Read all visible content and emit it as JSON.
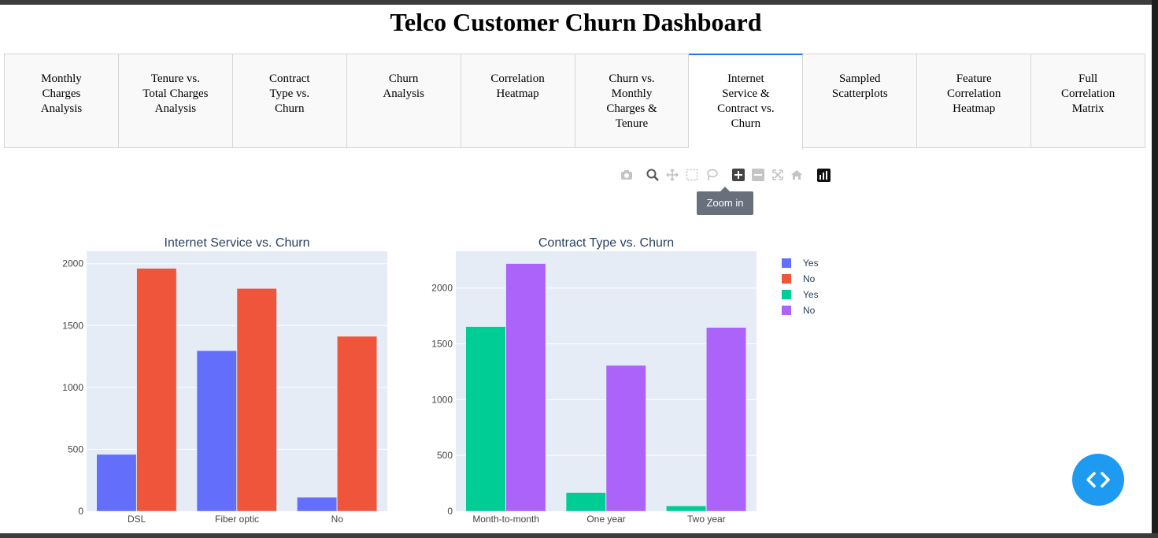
{
  "header": {
    "title": "Telco Customer Churn Dashboard"
  },
  "tabs": [
    {
      "label": "Monthly\nCharges\nAnalysis",
      "active": false
    },
    {
      "label": "Tenure vs.\nTotal Charges\nAnalysis",
      "active": false
    },
    {
      "label": "Contract\nType vs.\nChurn",
      "active": false
    },
    {
      "label": "Churn\nAnalysis",
      "active": false
    },
    {
      "label": "Correlation\nHeatmap",
      "active": false
    },
    {
      "label": "Churn vs.\nMonthly\nCharges &\nTenure",
      "active": false
    },
    {
      "label": "Internet\nService &\nContract vs.\nChurn",
      "active": true
    },
    {
      "label": "Sampled\nScatterplots",
      "active": false
    },
    {
      "label": "Feature\nCorrelation\nHeatmap",
      "active": false
    },
    {
      "label": "Full\nCorrelation\nMatrix",
      "active": false
    }
  ],
  "modebar": {
    "icons": [
      "camera-icon",
      "zoom-icon",
      "pan-icon",
      "box-select-icon",
      "lasso-select-icon",
      "zoom-in-icon",
      "zoom-out-icon",
      "autoscale-icon",
      "reset-axes-icon",
      "plotly-logo-icon"
    ],
    "tooltip": "Zoom in"
  },
  "colors": {
    "blue": "#636efa",
    "red": "#ef553b",
    "green": "#00cc96",
    "purple": "#ab63fa",
    "plot_bg": "#e5ecf6",
    "fab": "#1e9bf0"
  },
  "chart_data": [
    {
      "type": "bar",
      "title": "Internet Service vs. Churn",
      "categories": [
        "DSL",
        "Fiber optic",
        "No"
      ],
      "series": [
        {
          "name": "Yes",
          "color": "#636efa",
          "values": [
            459,
            1297,
            113
          ]
        },
        {
          "name": "No",
          "color": "#ef553b",
          "values": [
            1962,
            1799,
            1413
          ]
        }
      ],
      "ylim": [
        0,
        2100
      ],
      "yticks": [
        0,
        500,
        1000,
        1500,
        2000
      ],
      "grid": true,
      "legend": "none"
    },
    {
      "type": "bar",
      "title": "Contract Type vs. Churn",
      "categories": [
        "Month-to-month",
        "One year",
        "Two year"
      ],
      "series": [
        {
          "name": "Yes",
          "color": "#00cc96",
          "values": [
            1655,
            166,
            48
          ]
        },
        {
          "name": "No",
          "color": "#ab63fa",
          "values": [
            2220,
            1307,
            1647
          ]
        }
      ],
      "ylim": [
        0,
        2330
      ],
      "yticks": [
        0,
        500,
        1000,
        1500,
        2000
      ],
      "grid": true,
      "legend": "right"
    }
  ],
  "legend": [
    {
      "name": "Yes",
      "color": "#636efa"
    },
    {
      "name": "No",
      "color": "#ef553b"
    },
    {
      "name": "Yes",
      "color": "#00cc96"
    },
    {
      "name": "No",
      "color": "#ab63fa"
    }
  ],
  "fab": {
    "icon": "code-icon"
  }
}
